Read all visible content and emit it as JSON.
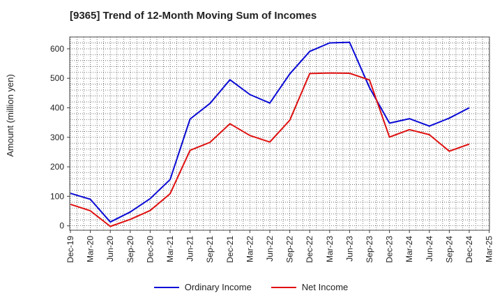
{
  "header": {
    "title": "[9365]  Trend of 12-Month Moving Sum of Incomes"
  },
  "colors": {
    "ordinary": "#0a0ad6",
    "net": "#e01010",
    "grid": "#555555"
  },
  "chart_data": {
    "type": "line",
    "title": "[9365]  Trend of 12-Month Moving Sum of Incomes",
    "ylabel": "Amount (million yen)",
    "xlabel": "",
    "ylim": [
      -15,
      640
    ],
    "yticks": [
      0,
      100,
      200,
      300,
      400,
      500,
      600
    ],
    "grid": true,
    "legend_position": "bottom",
    "categories": [
      "Dec-19",
      "Mar-20",
      "Jun-20",
      "Sep-20",
      "Dec-20",
      "Mar-21",
      "Jun-21",
      "Sep-21",
      "Dec-21",
      "Mar-22",
      "Jun-22",
      "Sep-22",
      "Dec-22",
      "Mar-23",
      "Jun-23",
      "Sep-23",
      "Dec-23",
      "Mar-24",
      "Jun-24",
      "Sep-24",
      "Dec-24",
      "Mar-25"
    ],
    "series": [
      {
        "name": "Ordinary Income",
        "color": "#0a0ad6",
        "values": [
          110,
          90,
          13,
          47,
          92,
          157,
          362,
          415,
          495,
          445,
          416,
          515,
          591,
          620,
          622,
          468,
          348,
          363,
          338,
          365,
          400,
          null
        ]
      },
      {
        "name": "Net Income",
        "color": "#e01010",
        "values": [
          73,
          51,
          -2,
          22,
          52,
          109,
          256,
          283,
          346,
          306,
          284,
          358,
          516,
          518,
          517,
          494,
          301,
          326,
          309,
          253,
          277,
          null
        ]
      }
    ]
  }
}
